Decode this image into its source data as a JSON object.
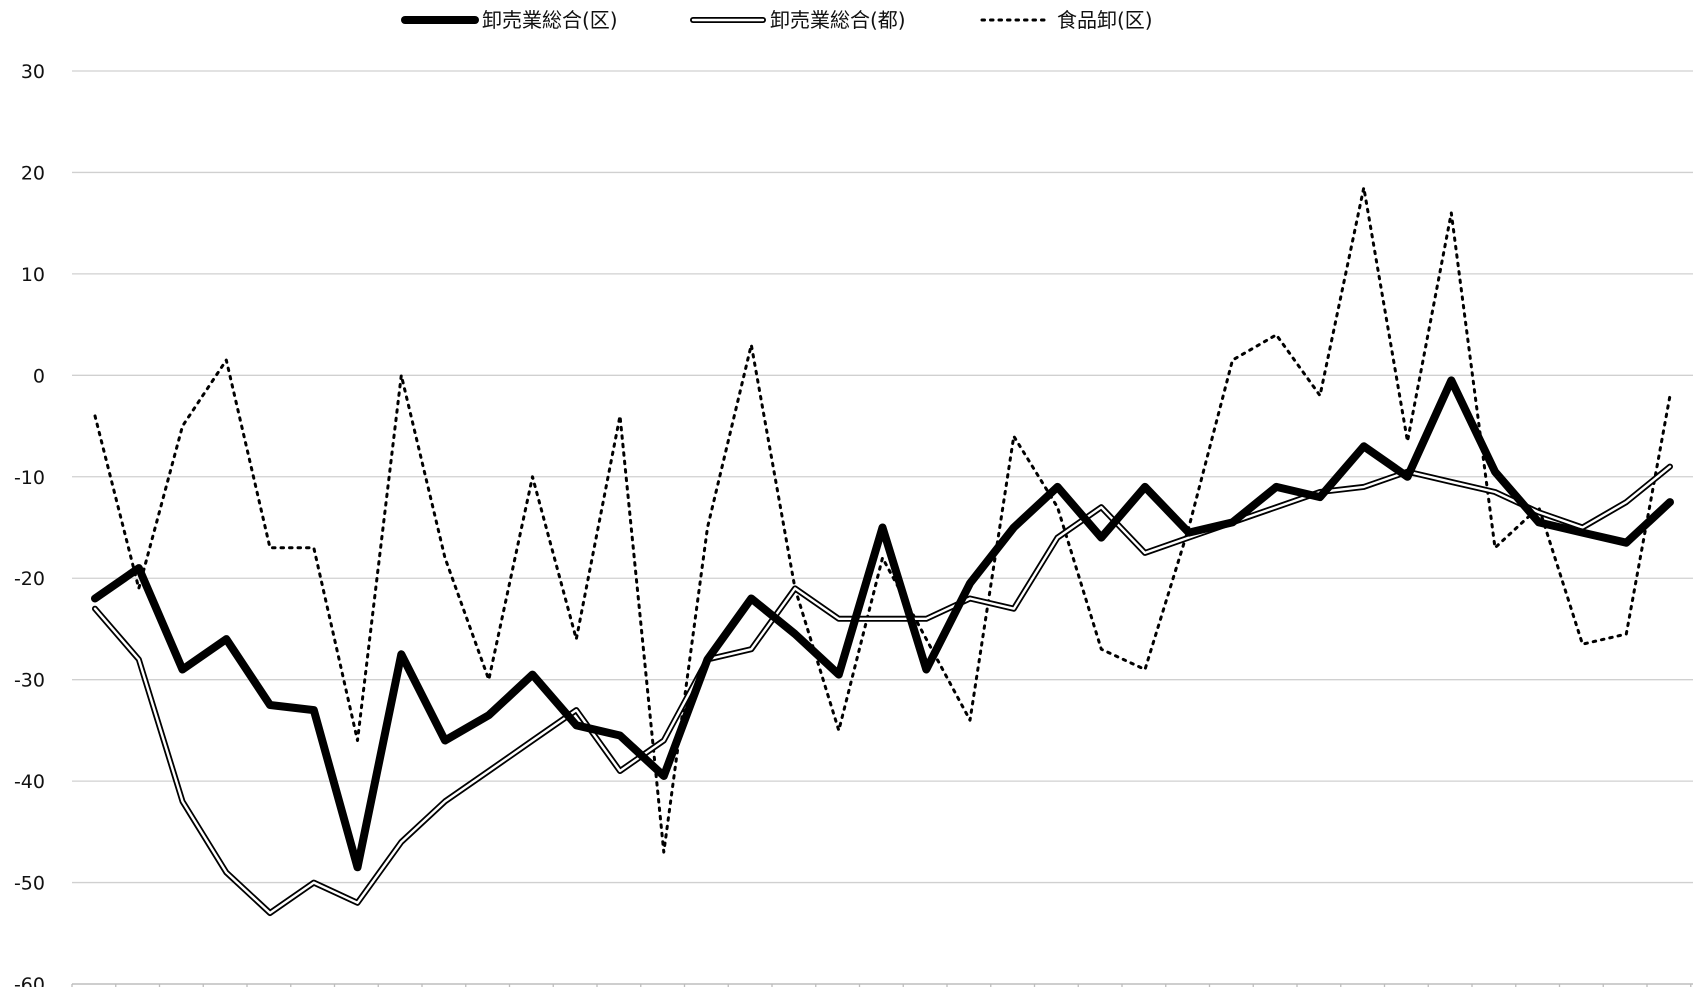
{
  "chart_data": {
    "type": "line",
    "title": "",
    "xlabel": "",
    "ylabel": "",
    "ylim": [
      -60,
      30
    ],
    "yticks": [
      30,
      20,
      10,
      0,
      -10,
      -20,
      -30,
      -40,
      -50,
      -60
    ],
    "ytick_labels": [
      "30",
      "20",
      "10",
      "0",
      "-10",
      "-20",
      "-30",
      "-40",
      "-50",
      "-60"
    ],
    "grid": true,
    "legend_position": "top-center",
    "x": [
      1,
      2,
      3,
      4,
      5,
      6,
      7,
      8,
      9,
      10,
      11,
      12,
      13,
      14,
      15,
      16,
      17,
      18,
      19,
      20,
      21,
      22,
      23,
      24,
      25,
      26,
      27,
      28,
      29,
      30,
      31,
      32,
      33,
      34,
      35,
      36,
      37
    ],
    "series": [
      {
        "name": "卸売業総合(区)",
        "style": "thick-solid",
        "color": "#000000",
        "values": [
          -22,
          -19,
          -29,
          -26,
          -32.5,
          -33,
          -48.5,
          -27.5,
          -36,
          -33.5,
          -29.5,
          -34.5,
          -35.5,
          -39.5,
          -28,
          -22,
          -25.5,
          -29.5,
          -15,
          -29,
          -20.5,
          -15,
          -11,
          -16,
          -11,
          -15.5,
          -14.5,
          -11,
          -12,
          -7,
          -10,
          -0.5,
          -9.5,
          -14.5,
          -15.5,
          -16.5,
          -12.5
        ]
      },
      {
        "name": "卸売業総合(都)",
        "style": "double-line",
        "color": "#000000",
        "values": [
          -23,
          -28,
          -42,
          -49,
          -53,
          -50,
          -52,
          -46,
          -42,
          -39,
          -36,
          -33,
          -39,
          -36,
          -28,
          -27,
          -21,
          -24,
          -24,
          -24,
          -22,
          -23,
          -16,
          -13,
          -17.5,
          -16,
          -14.5,
          -13,
          -11.5,
          -11,
          -9.5,
          -10.5,
          -11.5,
          -13.5,
          -15,
          -12.5,
          -9
        ]
      },
      {
        "name": "食品卸(区)",
        "style": "dotted",
        "color": "#000000",
        "values": [
          -4,
          -21,
          -5,
          1.5,
          -17,
          -17,
          -36,
          0,
          -18,
          -30,
          -10,
          -26,
          -4,
          -47,
          -15,
          3,
          -21,
          -35,
          -18,
          -26,
          -34,
          -6,
          -13,
          -27,
          -29,
          -15,
          1.5,
          4,
          -2,
          18.5,
          -6.5,
          16,
          -17,
          -13,
          -26.5,
          -25.5,
          -2
        ]
      }
    ]
  }
}
